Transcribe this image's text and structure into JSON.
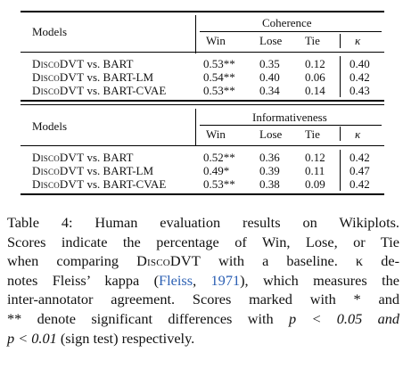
{
  "tables": [
    {
      "group_header": "Coherence",
      "col_headers": [
        "Models",
        "Win",
        "Lose",
        "Tie",
        "κ"
      ],
      "rows": [
        {
          "model_sc": "DiscoDVT",
          "model_rest": " vs. BART",
          "win": "0.53**",
          "lose": "0.35",
          "tie": "0.12",
          "kappa": "0.40"
        },
        {
          "model_sc": "DiscoDVT",
          "model_rest": " vs. BART-LM",
          "win": "0.54**",
          "lose": "0.40",
          "tie": "0.06",
          "kappa": "0.42"
        },
        {
          "model_sc": "DiscoDVT",
          "model_rest": " vs. BART-CVAE",
          "win": "0.53**",
          "lose": "0.34",
          "tie": "0.14",
          "kappa": "0.43"
        }
      ]
    },
    {
      "group_header": "Informativeness",
      "col_headers": [
        "Models",
        "Win",
        "Lose",
        "Tie",
        "κ"
      ],
      "rows": [
        {
          "model_sc": "DiscoDVT",
          "model_rest": " vs. BART",
          "win": "0.52**",
          "lose": "0.36",
          "tie": "0.12",
          "kappa": "0.42"
        },
        {
          "model_sc": "DiscoDVT",
          "model_rest": " vs. BART-LM",
          "win": "0.49*",
          "lose": "0.39",
          "tie": "0.11",
          "kappa": "0.47"
        },
        {
          "model_sc": "DiscoDVT",
          "model_rest": " vs. BART-CVAE",
          "win": "0.53**",
          "lose": "0.38",
          "tie": "0.09",
          "kappa": "0.42"
        }
      ]
    }
  ],
  "caption": {
    "l1": "Table 4:  Human evaluation results on Wikiplots.",
    "l2": "Scores indicate the percentage of Win, Lose, or Tie",
    "l3a": "when comparing ",
    "l3sc": "DiscoDVT",
    "l3b": " with a baseline.  κ de-",
    "l4a": "notes Fleiss’ kappa (",
    "l4cite": "Fleiss",
    "l4cite2": "1971",
    "l4b": "), which measures the",
    "l5": "inter-annotator agreement.  Scores marked with * and",
    "l6a": "** denote significant differences with ",
    "l6b": "p < 0.05 and",
    "l7a": "p < 0.01",
    "l7b": " (sign test) respectively."
  }
}
